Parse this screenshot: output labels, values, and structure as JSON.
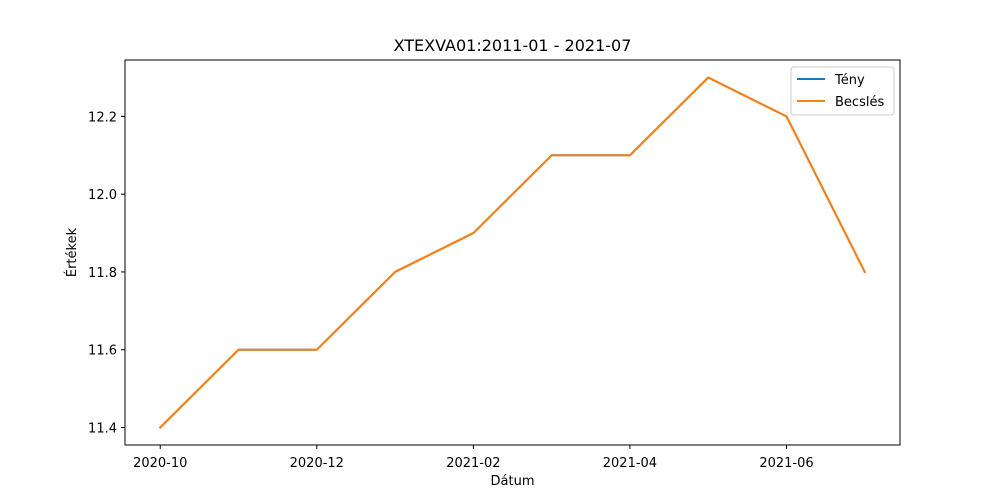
{
  "chart_data": {
    "type": "line",
    "title": "XTEXVA01:2011-01 - 2021-07",
    "xlabel": "Dátum",
    "ylabel": "Értékek",
    "x": [
      "2020-10",
      "2020-11",
      "2020-12",
      "2021-01",
      "2021-02",
      "2021-03",
      "2021-04",
      "2021-05",
      "2021-06",
      "2021-07"
    ],
    "x_ticks": [
      "2020-10",
      "2020-12",
      "2021-02",
      "2021-04",
      "2021-06"
    ],
    "y_ticks": [
      "11.4",
      "11.6",
      "11.8",
      "12.0",
      "12.2"
    ],
    "ylim": [
      11.355,
      12.345
    ],
    "grid": false,
    "legend_position": "top-right",
    "series": [
      {
        "name": "Tény",
        "color": "#1f77b4",
        "values": [
          11.4,
          11.6,
          11.6,
          11.8,
          11.9,
          12.1,
          12.1,
          12.3,
          12.2,
          11.8
        ]
      },
      {
        "name": "Becslés",
        "color": "#ff7f0e",
        "values": [
          11.4,
          11.6,
          11.6,
          11.8,
          11.9,
          12.1,
          12.1,
          12.3,
          12.2,
          11.8
        ]
      }
    ]
  }
}
